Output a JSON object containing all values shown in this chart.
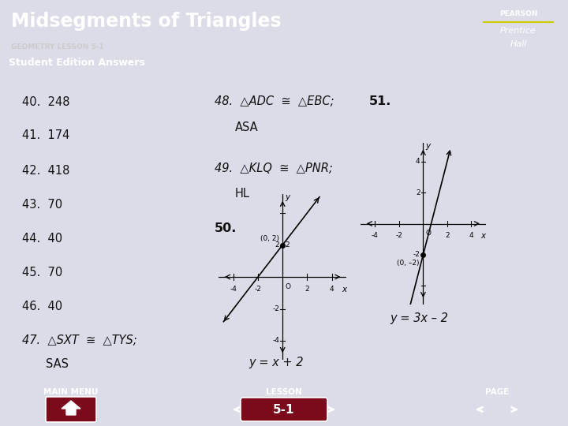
{
  "title": "Midsegments of Triangles",
  "subtitle": "GEOMETRY LESSON 5-1",
  "section_header": "Student Edition Answers",
  "header_bg": "#5c0a18",
  "section_bg": "#7b80aa",
  "footer_bg": "#5c0a18",
  "content_bg": "#dcdce8",
  "answers_left": [
    "40.  248",
    "41.  174",
    "42.  418",
    "43.  70",
    "44.  40",
    "45.  70",
    "46.  40"
  ],
  "equation_50": "y = x + 2",
  "equation_51": "y = 3x – 2",
  "footer_items": [
    "MAIN MENU",
    "LESSON",
    "PAGE"
  ],
  "lesson_num": "5-1"
}
